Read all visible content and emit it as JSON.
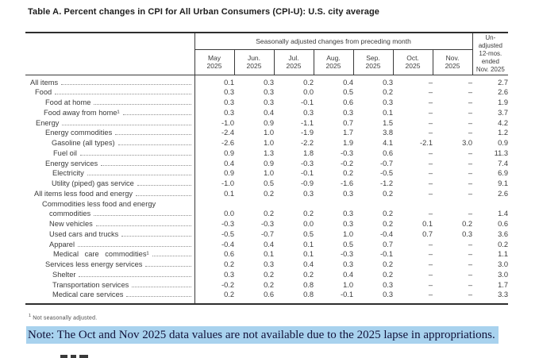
{
  "title": "Table A. Percent changes in CPI for All Urban Consumers (CPI-U): U.S. city average",
  "table": {
    "group_header": "Seasonally adjusted changes from preceding month",
    "unadjusted_lines": [
      "Un-",
      "adjusted",
      "12-mos.",
      "ended",
      "Nov. 2025"
    ],
    "months": [
      {
        "m": "May",
        "y": "2025"
      },
      {
        "m": "Jun.",
        "y": "2025"
      },
      {
        "m": "Jul.",
        "y": "2025"
      },
      {
        "m": "Aug.",
        "y": "2025"
      },
      {
        "m": "Sep.",
        "y": "2025"
      },
      {
        "m": "Oct.",
        "y": "2025"
      },
      {
        "m": "Nov.",
        "y": "2025"
      }
    ],
    "rows": [
      {
        "label": "All items",
        "indent": 6,
        "values": [
          "0.1",
          "0.3",
          "0.2",
          "0.4",
          "0.3",
          "–",
          "–",
          "2.7"
        ]
      },
      {
        "label": "Food",
        "indent": 12,
        "values": [
          "0.3",
          "0.3",
          "0.0",
          "0.5",
          "0.2",
          "–",
          "–",
          "2.6"
        ]
      },
      {
        "label": "Food at home",
        "indent": 25,
        "values": [
          "0.3",
          "0.3",
          "-0.1",
          "0.6",
          "0.3",
          "–",
          "–",
          "1.9"
        ]
      },
      {
        "label": "Food away from home¹",
        "indent": 23,
        "values": [
          "0.3",
          "0.4",
          "0.3",
          "0.3",
          "0.1",
          "–",
          "–",
          "3.7"
        ]
      },
      {
        "label": "Energy",
        "indent": 13,
        "values": [
          "-1.0",
          "0.9",
          "-1.1",
          "0.7",
          "1.5",
          "–",
          "–",
          "4.2"
        ]
      },
      {
        "label": "Energy commodities",
        "indent": 25,
        "values": [
          "-2.4",
          "1.0",
          "-1.9",
          "1.7",
          "3.8",
          "–",
          "–",
          "1.2"
        ]
      },
      {
        "label": "Gasoline (all types)",
        "indent": 33,
        "values": [
          "-2.6",
          "1.0",
          "-2.2",
          "1.9",
          "4.1",
          "-2.1",
          "3.0",
          "0.9"
        ]
      },
      {
        "label": "Fuel oil",
        "indent": 35,
        "values": [
          "0.9",
          "1.3",
          "1.8",
          "-0.3",
          "0.6",
          "–",
          "–",
          "11.3"
        ]
      },
      {
        "label": "Energy services",
        "indent": 25,
        "values": [
          "0.4",
          "0.9",
          "-0.3",
          "-0.2",
          "-0.7",
          "–",
          "–",
          "7.4"
        ]
      },
      {
        "label": "Electricity",
        "indent": 34,
        "values": [
          "0.9",
          "1.0",
          "-0.1",
          "0.2",
          "-0.5",
          "–",
          "–",
          "6.9"
        ]
      },
      {
        "label": "Utility (piped) gas service",
        "indent": 33,
        "values": [
          "-1.0",
          "0.5",
          "-0.9",
          "-1.6",
          "-1.2",
          "–",
          "–",
          "9.1"
        ]
      },
      {
        "label": "All items less food and energy",
        "indent": 11,
        "values": [
          "0.1",
          "0.2",
          "0.3",
          "0.3",
          "0.2",
          "–",
          "–",
          "2.6"
        ]
      },
      {
        "label": "Commodities less food and energy",
        "label2": "commodities",
        "indent": 21,
        "indent2": 30,
        "values": [
          "0.0",
          "0.2",
          "0.2",
          "0.3",
          "0.2",
          "–",
          "–",
          "1.4"
        ]
      },
      {
        "label": "New vehicles",
        "indent": 30,
        "values": [
          "-0.3",
          "-0.3",
          "0.0",
          "0.3",
          "0.2",
          "0.1",
          "0.2",
          "0.6"
        ]
      },
      {
        "label": "Used cars and trucks",
        "indent": 30,
        "values": [
          "-0.5",
          "-0.7",
          "0.5",
          "1.0",
          "-0.4",
          "0.7",
          "0.3",
          "3.6"
        ]
      },
      {
        "label": "Apparel",
        "indent": 30,
        "values": [
          "-0.4",
          "0.4",
          "0.1",
          "0.5",
          "0.7",
          "–",
          "–",
          "0.2"
        ]
      },
      {
        "label": "Medical care commodities¹",
        "indent": 35,
        "wide": true,
        "values": [
          "0.6",
          "0.1",
          "0.1",
          "-0.3",
          "-0.1",
          "–",
          "–",
          "1.1"
        ]
      },
      {
        "label": "Services less energy services",
        "indent": 25,
        "values": [
          "0.2",
          "0.3",
          "0.4",
          "0.3",
          "0.2",
          "–",
          "–",
          "3.0"
        ]
      },
      {
        "label": "Shelter",
        "indent": 34,
        "values": [
          "0.3",
          "0.2",
          "0.2",
          "0.4",
          "0.2",
          "–",
          "–",
          "3.0"
        ]
      },
      {
        "label": "Transportation services",
        "indent": 34,
        "values": [
          "-0.2",
          "0.2",
          "0.8",
          "1.0",
          "0.3",
          "–",
          "–",
          "1.7"
        ]
      },
      {
        "label": "Medical care services",
        "indent": 34,
        "values": [
          "0.2",
          "0.6",
          "0.8",
          "-0.1",
          "0.3",
          "–",
          "–",
          "3.3"
        ]
      }
    ]
  },
  "footnote": {
    "marker": "1",
    "text": "Not seasonally adjusted."
  },
  "note": {
    "text": "Note: The Oct and Nov 2025 data values are not available due to the 2025 lapse in appropriations.",
    "highlight_color": "#a8d2ee"
  }
}
